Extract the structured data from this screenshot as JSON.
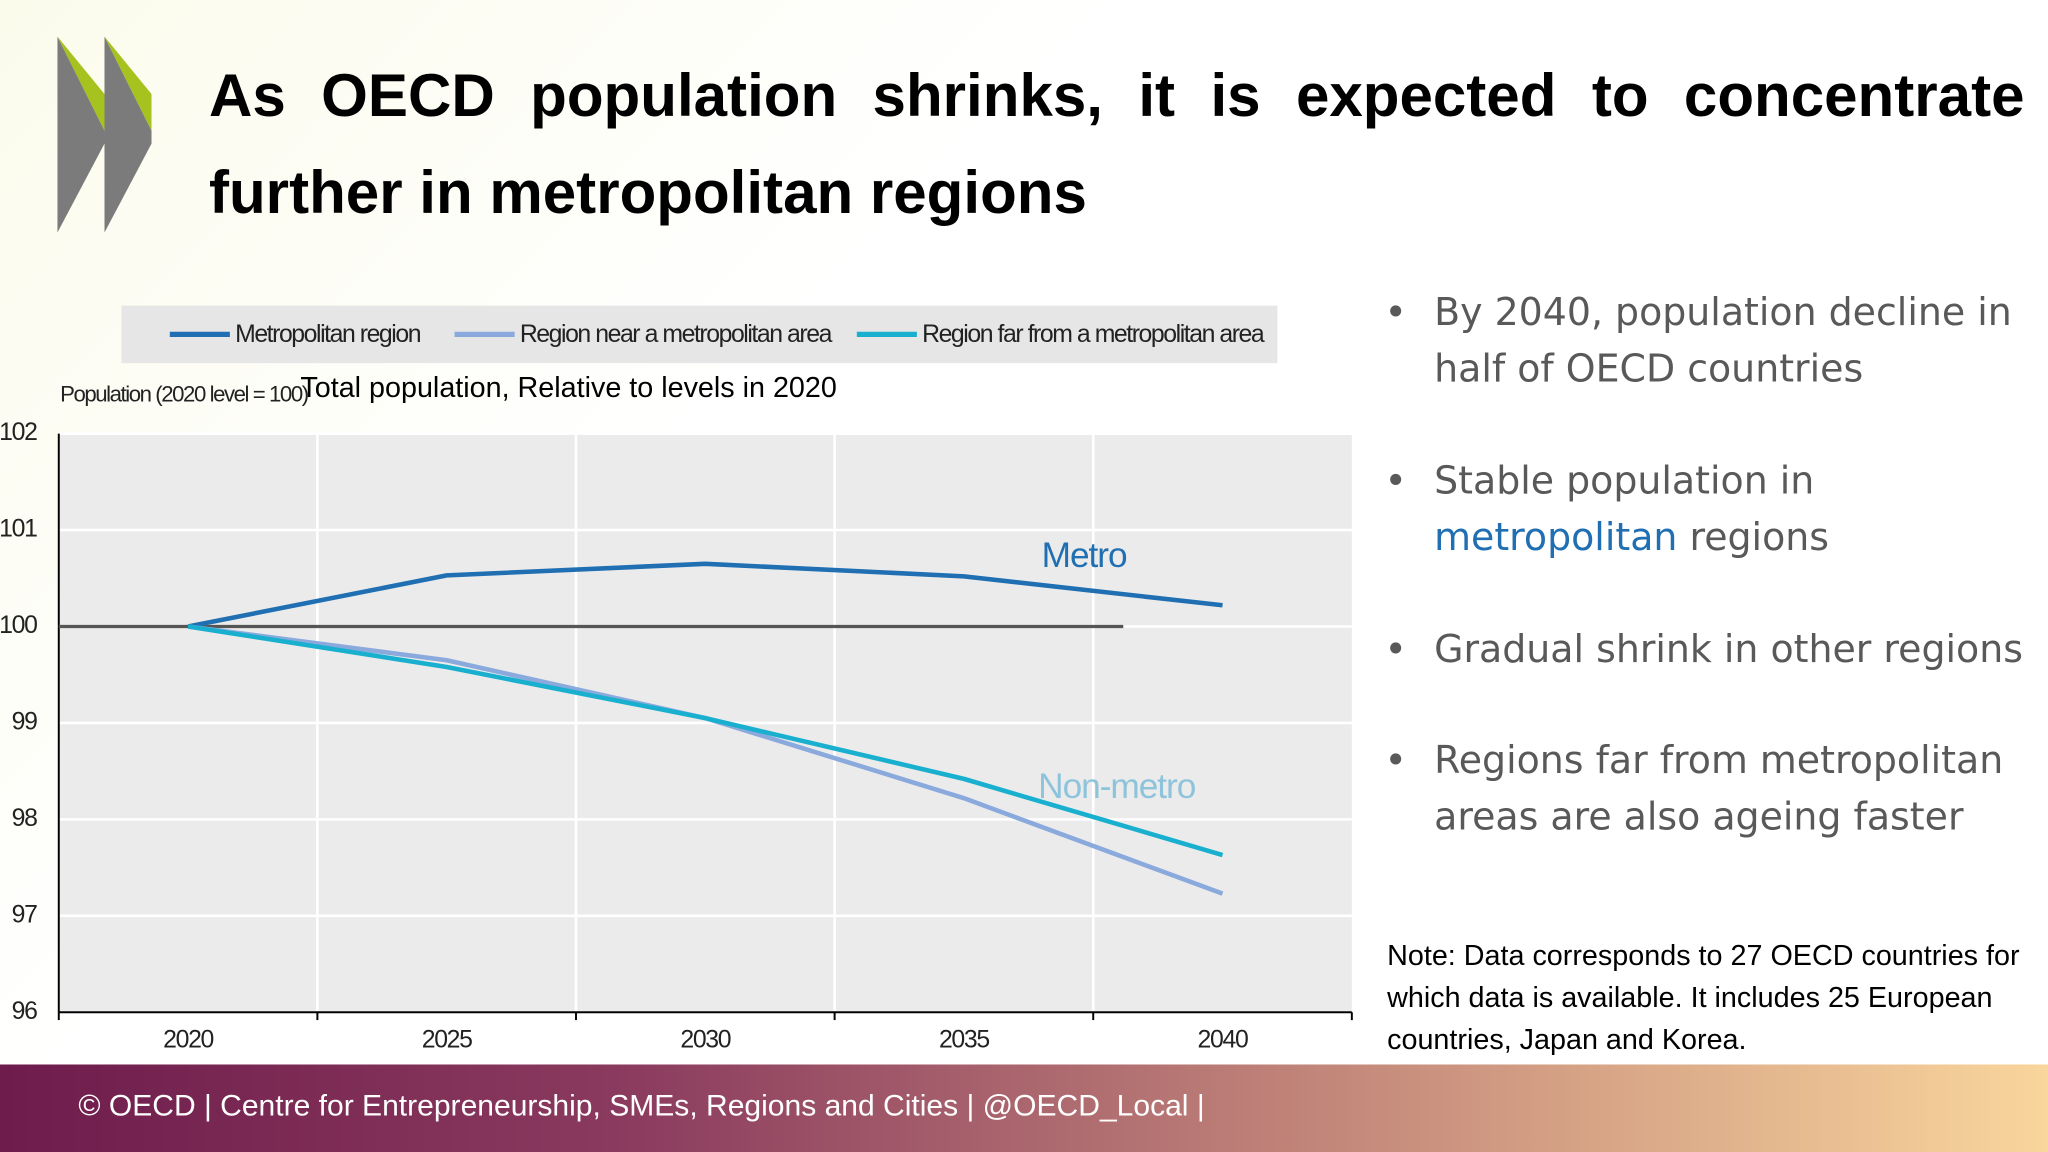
{
  "title": "As OECD population shrinks, it is expected to concentrate further in metropolitan regions",
  "chart_data": {
    "type": "line",
    "subtitle": "Total population, Relative to levels in 2020",
    "y_label": "Population (2020 level = 100)",
    "categories": [
      "2020",
      "2025",
      "2030",
      "2035",
      "2040"
    ],
    "series": [
      {
        "name": "Metropolitan region",
        "color": "#1f6fb2",
        "values": [
          100,
          100.53,
          100.65,
          100.52,
          100.22
        ]
      },
      {
        "name": "Region near a metropolitan area",
        "color": "#8aa9dd",
        "values": [
          100,
          99.65,
          99.05,
          98.22,
          97.23
        ]
      },
      {
        "name": "Region far from a metropolitan area",
        "color": "#19afcf",
        "values": [
          100,
          99.58,
          99.05,
          98.42,
          97.63
        ]
      }
    ],
    "ylim": [
      96,
      102
    ],
    "yticks": [
      96,
      97,
      98,
      99,
      100,
      101,
      102
    ],
    "grid": true,
    "reference_line": 100,
    "annotations": [
      {
        "text": "Metro",
        "color": "#1f6fb2"
      },
      {
        "text": "Non-metro",
        "color": "#8ec3dc"
      }
    ]
  },
  "bullets": [
    [
      "By 2040, population decline in half of OECD countries"
    ],
    [
      "Stable population in",
      "metropolitan",
      "regions"
    ],
    [
      "Gradual shrink in other regions"
    ],
    [
      "Regions far from metropolitan areas are also ageing faster"
    ]
  ],
  "note": "Note: Data corresponds to 27 OECD countries for which data is available. It includes 25 European countries, Japan and Korea.",
  "footer": "© OECD | Centre for Entrepreneurship, SMEs, Regions and Cities | @OECD_Local |"
}
